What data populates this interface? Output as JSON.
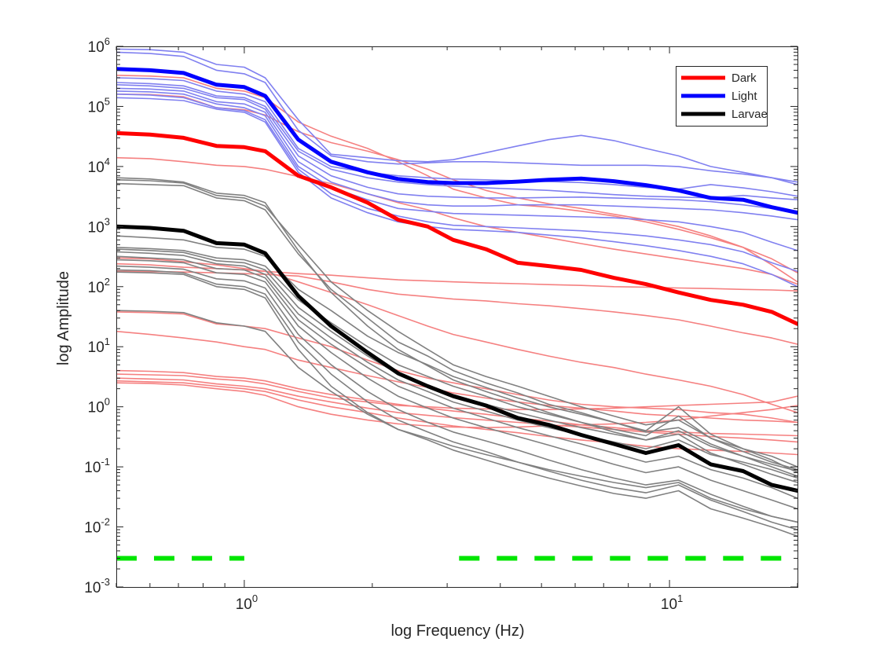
{
  "chart_data": {
    "type": "line",
    "title": "",
    "xlabel": "log Frequency (Hz)",
    "ylabel": "log Amplitude",
    "xscale": "log",
    "yscale": "log",
    "xlim": [
      0.5,
      20
    ],
    "ylim": [
      0.001,
      1000000
    ],
    "grid": false,
    "legend_position": "top-right",
    "x_ticks": [
      {
        "base": "10",
        "exp": "0",
        "value": 1
      },
      {
        "base": "10",
        "exp": "1",
        "value": 10
      }
    ],
    "y_ticks": [
      {
        "base": "10",
        "exp": "-3",
        "value": 0.001
      },
      {
        "base": "10",
        "exp": "-2",
        "value": 0.01
      },
      {
        "base": "10",
        "exp": "-1",
        "value": 0.1
      },
      {
        "base": "10",
        "exp": "0",
        "value": 1
      },
      {
        "base": "10",
        "exp": "1",
        "value": 10
      },
      {
        "base": "10",
        "exp": "2",
        "value": 100
      },
      {
        "base": "10",
        "exp": "3",
        "value": 1000
      },
      {
        "base": "10",
        "exp": "4",
        "value": 10000
      },
      {
        "base": "10",
        "exp": "5",
        "value": 100000
      },
      {
        "base": "10",
        "exp": "6",
        "value": 1000000
      }
    ],
    "colors": {
      "dark": "#ff0000",
      "dark_faint": "#f58080",
      "light": "#0000ff",
      "light_faint": "#8080f0",
      "larvae": "#000000",
      "larvae_faint": "#808080",
      "significance": "#00e600"
    },
    "x": [
      0.5,
      0.6,
      0.72,
      0.86,
      1.0,
      1.12,
      1.34,
      1.6,
      1.95,
      2.3,
      2.7,
      3.1,
      3.7,
      4.4,
      5.2,
      6.2,
      7.4,
      8.8,
      10.5,
      12.5,
      14.9,
      17.4,
      20
    ],
    "legend": [
      {
        "label": "Dark",
        "color": "#ff0000"
      },
      {
        "label": "Light",
        "color": "#0000ff"
      },
      {
        "label": "Larvae",
        "color": "#000000"
      }
    ],
    "series": [
      {
        "name": "Dark",
        "group": "dark",
        "mean": true,
        "values": [
          36000,
          34000,
          30000,
          22000,
          21000,
          18000,
          7000,
          4500,
          2500,
          1300,
          1000,
          600,
          420,
          250,
          220,
          190,
          140,
          110,
          80,
          60,
          50,
          38,
          24
        ]
      },
      {
        "name": "Light",
        "group": "light",
        "mean": true,
        "values": [
          420000,
          400000,
          360000,
          230000,
          210000,
          150000,
          28000,
          12000,
          8000,
          6200,
          5500,
          5300,
          5300,
          5600,
          6000,
          6300,
          5700,
          4900,
          4000,
          3000,
          2800,
          2100,
          1700
        ]
      },
      {
        "name": "Larvae",
        "group": "larvae",
        "mean": true,
        "values": [
          1000,
          950,
          850,
          530,
          500,
          360,
          70,
          22,
          8,
          3.6,
          2.2,
          1.5,
          1.05,
          0.65,
          0.5,
          0.34,
          0.24,
          0.17,
          0.23,
          0.11,
          0.085,
          0.05,
          0.04
        ]
      },
      {
        "group": "dark",
        "values": [
          160000,
          158000,
          145000,
          95000,
          88000,
          72000,
          38000,
          25000,
          18000,
          13000,
          9000,
          6000,
          4000,
          3000,
          2400,
          2000,
          1600,
          1300,
          1000,
          700,
          450,
          230,
          120
        ]
      },
      {
        "group": "dark",
        "values": [
          14000,
          13500,
          12000,
          10500,
          10000,
          9000,
          6800,
          5200,
          3500,
          2500,
          1900,
          1400,
          1000,
          800,
          650,
          520,
          420,
          350,
          290,
          240,
          200,
          160,
          110
        ]
      },
      {
        "group": "dark",
        "values": [
          330000,
          320000,
          300000,
          200000,
          180000,
          140000,
          55000,
          32000,
          20000,
          12000,
          7000,
          4200,
          3000,
          2300,
          2100,
          1800,
          1500,
          1200,
          900,
          650,
          450,
          290,
          170
        ]
      },
      {
        "group": "dark",
        "values": [
          240,
          230,
          210,
          200,
          190,
          180,
          165,
          155,
          140,
          130,
          125,
          120,
          115,
          112,
          108,
          105,
          100,
          98,
          95,
          93,
          90,
          88,
          85
        ]
      },
      {
        "group": "dark",
        "values": [
          180,
          178,
          175,
          170,
          165,
          160,
          150,
          120,
          90,
          75,
          68,
          62,
          58,
          52,
          48,
          43,
          38,
          33,
          28,
          22,
          17,
          14,
          11
        ]
      },
      {
        "group": "dark",
        "values": [
          300,
          290,
          260,
          230,
          200,
          180,
          120,
          80,
          50,
          33,
          22,
          16,
          12,
          9,
          7,
          5.5,
          4.5,
          3.5,
          2.8,
          2.2,
          1.6,
          1.1,
          0.8
        ]
      },
      {
        "group": "dark",
        "values": [
          38,
          37,
          35,
          24,
          22,
          20,
          14,
          10,
          6,
          4,
          3,
          2.5,
          2.0,
          1.6,
          1.3,
          1.1,
          1.0,
          0.95,
          0.9,
          0.8,
          0.75,
          0.65,
          0.55
        ]
      },
      {
        "group": "dark",
        "values": [
          18,
          16,
          14,
          12,
          10,
          9,
          6,
          4.5,
          3.3,
          2.6,
          2.1,
          1.7,
          1.4,
          1.2,
          1.05,
          0.95,
          0.85,
          0.75,
          0.7,
          0.65,
          0.6,
          0.58,
          0.55
        ]
      },
      {
        "group": "dark",
        "values": [
          4.0,
          3.9,
          3.7,
          3.2,
          3.0,
          2.7,
          2.0,
          1.6,
          1.3,
          1.1,
          0.95,
          0.85,
          0.75,
          0.65,
          0.58,
          0.5,
          0.45,
          0.4,
          0.38,
          0.36,
          0.35,
          0.34,
          0.33
        ]
      },
      {
        "group": "dark",
        "values": [
          3.5,
          3.4,
          3.3,
          2.9,
          2.7,
          2.4,
          1.8,
          1.4,
          1.2,
          1.05,
          1.0,
          0.95,
          0.92,
          0.9,
          0.9,
          0.92,
          0.95,
          1.0,
          1.05,
          1.1,
          1.15,
          1.2,
          1.5
        ]
      },
      {
        "group": "dark",
        "values": [
          3.0,
          2.9,
          2.8,
          2.4,
          2.2,
          2.0,
          1.5,
          1.2,
          0.95,
          0.8,
          0.72,
          0.66,
          0.6,
          0.55,
          0.5,
          0.46,
          0.42,
          0.38,
          0.35,
          0.32,
          0.3,
          0.28,
          0.26
        ]
      },
      {
        "group": "dark",
        "values": [
          2.7,
          2.6,
          2.5,
          2.2,
          2.0,
          1.8,
          1.3,
          1.0,
          0.8,
          0.65,
          0.55,
          0.48,
          0.42,
          0.37,
          0.32,
          0.28,
          0.25,
          0.22,
          0.2,
          0.19,
          0.18,
          0.17,
          0.16
        ]
      },
      {
        "group": "dark",
        "values": [
          2.5,
          2.45,
          2.3,
          2.0,
          1.8,
          1.55,
          1.0,
          0.75,
          0.6,
          0.52,
          0.48,
          0.46,
          0.45,
          0.46,
          0.48,
          0.5,
          0.52,
          0.55,
          0.6,
          0.7,
          0.8,
          0.9,
          1.05
        ]
      },
      {
        "group": "light",
        "values": [
          900000,
          880000,
          800000,
          500000,
          450000,
          300000,
          60000,
          16000,
          14000,
          12500,
          12000,
          13000,
          17000,
          22000,
          28000,
          33000,
          27000,
          20000,
          15000,
          10000,
          8000,
          6500,
          5500
        ]
      },
      {
        "group": "light",
        "values": [
          800000,
          760000,
          680000,
          400000,
          350000,
          250000,
          40000,
          15000,
          12000,
          11000,
          11500,
          12000,
          12000,
          11500,
          11000,
          10500,
          10500,
          10500,
          10000,
          8500,
          7500,
          6500,
          5000
        ]
      },
      {
        "group": "light",
        "values": [
          300000,
          290000,
          270000,
          180000,
          160000,
          120000,
          20000,
          10000,
          8000,
          7000,
          6500,
          6200,
          6000,
          5800,
          5600,
          5400,
          5000,
          4500,
          4200,
          5000,
          4400,
          3800,
          3200
        ]
      },
      {
        "group": "light",
        "values": [
          250000,
          240000,
          220000,
          150000,
          140000,
          100000,
          18000,
          9000,
          6500,
          5500,
          5000,
          4700,
          4400,
          4200,
          4000,
          3700,
          3400,
          3200,
          3100,
          3000,
          3300,
          3000,
          2800
        ]
      },
      {
        "group": "light",
        "values": [
          230000,
          220000,
          200000,
          140000,
          130000,
          90000,
          15000,
          7000,
          4500,
          3500,
          3200,
          3100,
          3000,
          3000,
          3050,
          3100,
          3000,
          2900,
          2800,
          2600,
          2300,
          2000,
          1800
        ]
      },
      {
        "group": "light",
        "values": [
          200000,
          195000,
          180000,
          120000,
          110000,
          80000,
          12000,
          5500,
          3500,
          2600,
          2300,
          2200,
          2200,
          2300,
          2300,
          2300,
          2200,
          2100,
          2000,
          1900,
          1700,
          1500,
          1300
        ]
      },
      {
        "group": "light",
        "values": [
          180000,
          175000,
          160000,
          110000,
          95000,
          70000,
          10000,
          4500,
          2800,
          2000,
          1800,
          1650,
          1600,
          1550,
          1500,
          1450,
          1400,
          1300,
          1200,
          1000,
          800,
          550,
          400
        ]
      },
      {
        "group": "light",
        "values": [
          160000,
          155000,
          140000,
          95000,
          85000,
          60000,
          9000,
          3500,
          2000,
          1500,
          1200,
          1050,
          1000,
          950,
          900,
          850,
          780,
          700,
          600,
          500,
          380,
          250,
          180
        ]
      },
      {
        "group": "light",
        "values": [
          140000,
          135000,
          125000,
          90000,
          80000,
          55000,
          8000,
          3000,
          1700,
          1200,
          1000,
          900,
          850,
          800,
          720,
          650,
          560,
          480,
          400,
          320,
          240,
          160,
          100
        ]
      },
      {
        "group": "larvae",
        "values": [
          6000,
          5800,
          5300,
          3300,
          3000,
          2200,
          500,
          120,
          40,
          18,
          9,
          5,
          3.2,
          2.2,
          1.5,
          1.0,
          0.7,
          0.5,
          0.6,
          0.3,
          0.18,
          0.12,
          0.09
        ]
      },
      {
        "group": "larvae",
        "values": [
          5200,
          5000,
          4800,
          3000,
          2700,
          1900,
          350,
          90,
          30,
          12,
          7,
          4,
          2.5,
          1.7,
          1.1,
          0.8,
          0.55,
          0.38,
          0.45,
          0.24,
          0.15,
          0.1,
          0.07
        ]
      },
      {
        "group": "larvae",
        "values": [
          700,
          650,
          600,
          450,
          420,
          320,
          90,
          40,
          15,
          8,
          5,
          3.2,
          2.1,
          1.4,
          1.0,
          0.75,
          0.55,
          0.4,
          1.0,
          0.35,
          0.2,
          0.13,
          0.08
        ]
      },
      {
        "group": "larvae",
        "values": [
          450,
          430,
          400,
          300,
          280,
          220,
          60,
          25,
          10,
          5,
          3.2,
          2.2,
          1.5,
          1.0,
          0.75,
          0.55,
          0.42,
          0.33,
          0.7,
          0.3,
          0.2,
          0.15,
          0.1
        ]
      },
      {
        "group": "larvae",
        "values": [
          420,
          400,
          370,
          270,
          250,
          190,
          45,
          18,
          7,
          3.5,
          2.3,
          1.6,
          1.1,
          0.8,
          0.6,
          0.45,
          0.35,
          0.28,
          0.4,
          0.22,
          0.15,
          0.11,
          0.085
        ]
      },
      {
        "group": "larvae",
        "values": [
          380,
          360,
          330,
          240,
          220,
          160,
          35,
          14,
          5.5,
          2.8,
          1.8,
          1.2,
          0.85,
          0.6,
          0.45,
          0.34,
          0.26,
          0.2,
          0.28,
          0.16,
          0.12,
          0.09,
          0.065
        ]
      },
      {
        "group": "larvae",
        "values": [
          320,
          300,
          280,
          200,
          190,
          140,
          28,
          11,
          4.5,
          2.2,
          1.4,
          0.95,
          0.65,
          0.45,
          0.33,
          0.24,
          0.17,
          0.12,
          0.15,
          0.09,
          0.065,
          0.045,
          0.03
        ]
      },
      {
        "group": "larvae",
        "values": [
          280,
          270,
          250,
          170,
          160,
          120,
          22,
          8,
          3,
          1.5,
          0.95,
          0.65,
          0.45,
          0.32,
          0.23,
          0.16,
          0.11,
          0.08,
          0.1,
          0.06,
          0.04,
          0.028,
          0.02
        ]
      },
      {
        "group": "larvae",
        "values": [
          220,
          210,
          195,
          135,
          125,
          95,
          16,
          5,
          1.8,
          0.9,
          0.55,
          0.38,
          0.27,
          0.19,
          0.13,
          0.09,
          0.065,
          0.05,
          0.06,
          0.035,
          0.022,
          0.015,
          0.012
        ]
      },
      {
        "group": "larvae",
        "values": [
          190,
          185,
          170,
          110,
          100,
          75,
          12,
          3.5,
          1.2,
          0.6,
          0.38,
          0.26,
          0.18,
          0.12,
          0.085,
          0.06,
          0.045,
          0.037,
          0.05,
          0.028,
          0.018,
          0.012,
          0.009
        ]
      },
      {
        "group": "larvae",
        "values": [
          175,
          170,
          160,
          100,
          90,
          65,
          9,
          2.2,
          0.8,
          0.42,
          0.28,
          0.19,
          0.13,
          0.09,
          0.065,
          0.048,
          0.036,
          0.03,
          0.04,
          0.02,
          0.014,
          0.01,
          0.007
        ]
      },
      {
        "group": "larvae",
        "values": [
          40,
          39,
          37,
          25,
          22,
          18,
          4.5,
          1.8,
          0.75,
          0.42,
          0.3,
          0.22,
          0.16,
          0.12,
          0.09,
          0.07,
          0.055,
          0.045,
          0.055,
          0.03,
          0.02,
          0.015,
          0.012
        ]
      },
      {
        "group": "larvae",
        "values": [
          6500,
          6200,
          5500,
          3600,
          3300,
          2500,
          400,
          80,
          22,
          9,
          4.8,
          2.8,
          1.8,
          1.2,
          0.8,
          0.55,
          0.38,
          0.28,
          0.35,
          0.17,
          0.11,
          0.075,
          0.055
        ]
      }
    ],
    "significance_segments": [
      {
        "x_start": 0.5,
        "x_end": 1.0,
        "y": 0.003
      },
      {
        "x_start": 3.2,
        "x_end": 20,
        "y": 0.003
      }
    ]
  }
}
